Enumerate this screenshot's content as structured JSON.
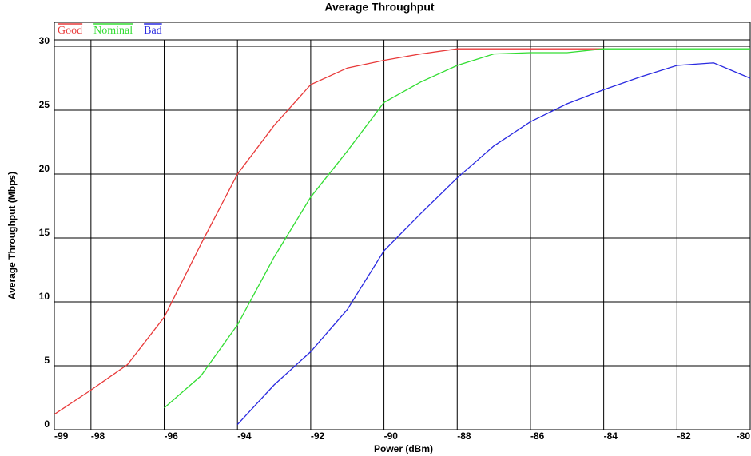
{
  "chart_data": {
    "type": "line",
    "title": "Average Throughput",
    "x_label": "Power  (dBm)",
    "y_label": "Average Throughput (Mbps)",
    "x": [
      -99,
      -98,
      -97,
      -96,
      -95,
      -94,
      -93,
      -92,
      -91,
      -90,
      -89,
      -88,
      -87,
      -86,
      -85,
      -84,
      -83,
      -82,
      -81,
      -80
    ],
    "series": [
      {
        "name": "Good",
        "color": "#e83a3a",
        "values": [
          1.2,
          3.1,
          5.1,
          8.8,
          14.5,
          20,
          23.8,
          27,
          28.3,
          28.9,
          29.4,
          29.8,
          29.8,
          29.8,
          29.8,
          29.8,
          null,
          null,
          null,
          null
        ]
      },
      {
        "name": "Nominal",
        "color": "#33dd33",
        "values": [
          null,
          null,
          null,
          1.7,
          4.2,
          8.2,
          13.5,
          18.2,
          21.8,
          25.6,
          27.2,
          28.5,
          29.4,
          29.5,
          29.5,
          29.8,
          29.8,
          29.8,
          29.8,
          29.8
        ]
      },
      {
        "name": "Bad",
        "color": "#2a2ae0",
        "values": [
          null,
          null,
          null,
          null,
          null,
          0.4,
          3.5,
          6.1,
          9.4,
          14,
          16.9,
          19.7,
          22.2,
          24.1,
          25.5,
          26.6,
          27.6,
          28.5,
          28.7,
          27.5
        ]
      }
    ],
    "xlim": [
      -99,
      -80
    ],
    "ylim": [
      0,
      30.5
    ],
    "xticks": [
      -99,
      -98,
      -96,
      -94,
      -92,
      -90,
      -88,
      -86,
      -84,
      -82,
      -80
    ],
    "yticks": [
      0,
      5,
      10,
      15,
      20,
      25,
      30
    ],
    "grid": true
  }
}
